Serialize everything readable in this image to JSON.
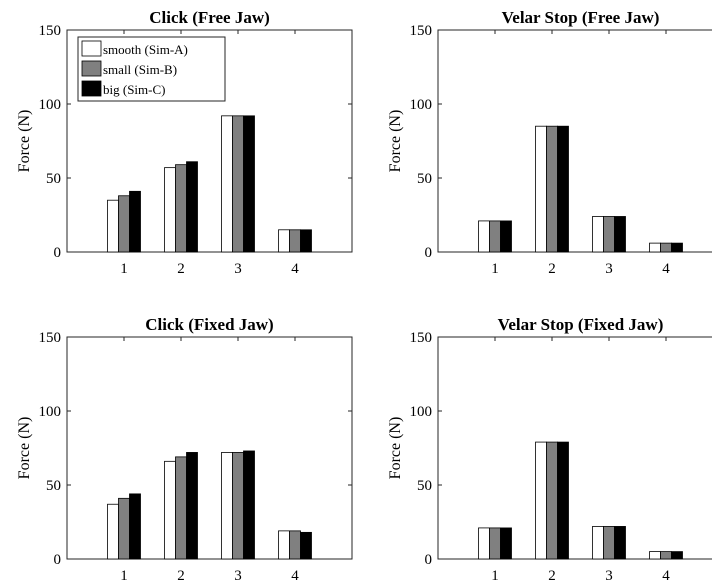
{
  "chart_data": [
    {
      "type": "bar",
      "title": "Click (Free Jaw)",
      "xlabel": "",
      "ylabel": "Force (N)",
      "categories": [
        "1",
        "2",
        "3",
        "4"
      ],
      "ylim": [
        0,
        150
      ],
      "yticks": [
        "0",
        "50",
        "100",
        "150"
      ],
      "series": [
        {
          "name": "smooth (Sim-A)",
          "color": "#ffffff",
          "values": [
            35,
            57,
            92,
            15
          ]
        },
        {
          "name": "small (Sim-B)",
          "color": "#808080",
          "values": [
            38,
            59,
            92,
            15
          ]
        },
        {
          "name": "big (Sim-C)",
          "color": "#000000",
          "values": [
            41,
            61,
            92,
            15
          ]
        }
      ],
      "legend": "top-left",
      "grid": false
    },
    {
      "type": "bar",
      "title": "Velar Stop (Free Jaw)",
      "xlabel": "",
      "ylabel": "Force (N)",
      "categories": [
        "1",
        "2",
        "3",
        "4"
      ],
      "ylim": [
        0,
        150
      ],
      "yticks": [
        "0",
        "50",
        "100",
        "150"
      ],
      "series": [
        {
          "color": "#ffffff",
          "values": [
            21,
            85,
            24,
            6
          ]
        },
        {
          "color": "#808080",
          "values": [
            21,
            85,
            24,
            6
          ]
        },
        {
          "color": "#000000",
          "values": [
            21,
            85,
            24,
            6
          ]
        }
      ],
      "grid": false
    },
    {
      "type": "bar",
      "title": "Click (Fixed Jaw)",
      "xlabel": "",
      "ylabel": "Force (N)",
      "categories": [
        "1",
        "2",
        "3",
        "4"
      ],
      "ylim": [
        0,
        150
      ],
      "yticks": [
        "0",
        "50",
        "100",
        "150"
      ],
      "series": [
        {
          "color": "#ffffff",
          "values": [
            37,
            66,
            72,
            19
          ]
        },
        {
          "color": "#808080",
          "values": [
            41,
            69,
            72,
            19
          ]
        },
        {
          "color": "#000000",
          "values": [
            44,
            72,
            73,
            18
          ]
        }
      ],
      "grid": false
    },
    {
      "type": "bar",
      "title": "Velar Stop (Fixed Jaw)",
      "xlabel": "",
      "ylabel": "Force (N)",
      "categories": [
        "1",
        "2",
        "3",
        "4"
      ],
      "ylim": [
        0,
        150
      ],
      "yticks": [
        "0",
        "50",
        "100",
        "150"
      ],
      "series": [
        {
          "color": "#ffffff",
          "values": [
            21,
            79,
            22,
            5
          ]
        },
        {
          "color": "#808080",
          "values": [
            21,
            79,
            22,
            5
          ]
        },
        {
          "color": "#000000",
          "values": [
            21,
            79,
            22,
            5
          ]
        }
      ],
      "grid": false
    }
  ]
}
